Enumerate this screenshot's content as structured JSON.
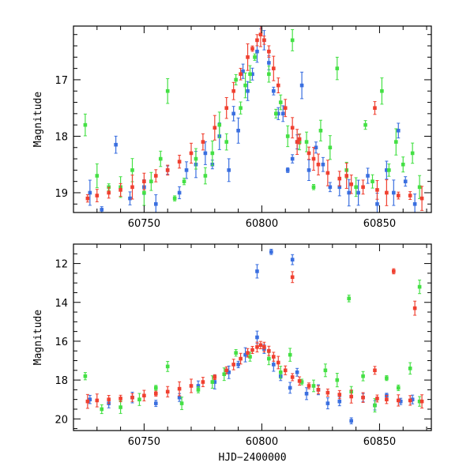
{
  "chart_data": [
    {
      "type": "scatter",
      "title": "",
      "xlabel": "",
      "ylabel": "Magnitude",
      "xlim": [
        60720,
        60872
      ],
      "ylim": [
        19.35,
        16.05
      ],
      "y_inverted": true,
      "x_ticks": [
        60750,
        60800,
        60850
      ],
      "y_ticks": [
        17,
        18,
        19
      ],
      "grid": false,
      "legend": "none",
      "series": [
        {
          "color": "#3a6fe0",
          "points": [
            [
              60727,
              19.0
            ],
            [
              60732,
              19.3
            ],
            [
              60738,
              18.15
            ],
            [
              60744,
              19.1
            ],
            [
              60750,
              18.9
            ],
            [
              60755,
              19.2
            ],
            [
              60760,
              18.6
            ],
            [
              60765,
              19.0
            ],
            [
              60768,
              18.6
            ],
            [
              60772,
              18.5
            ],
            [
              60776,
              18.3
            ],
            [
              60779,
              18.5
            ],
            [
              60782,
              18.0
            ],
            [
              60786,
              18.6
            ],
            [
              60788,
              17.6
            ],
            [
              60790,
              17.9
            ],
            [
              60792,
              16.85
            ],
            [
              60794,
              17.2
            ],
            [
              60796,
              16.9
            ],
            [
              60798,
              16.5
            ],
            [
              60799.6,
              15.95
            ],
            [
              60801,
              16.3
            ],
            [
              60803,
              16.7
            ],
            [
              60805,
              17.2
            ],
            [
              60807,
              17.6
            ],
            [
              60809,
              17.6
            ],
            [
              60811,
              18.6
            ],
            [
              60813,
              18.4
            ],
            [
              60815,
              18.1
            ],
            [
              60817,
              17.1
            ],
            [
              60820,
              18.6
            ],
            [
              60823,
              18.2
            ],
            [
              60826,
              18.5
            ],
            [
              60829,
              18.9
            ],
            [
              60833,
              18.9
            ],
            [
              60837,
              19.0
            ],
            [
              60841,
              19.0
            ],
            [
              60845,
              18.7
            ],
            [
              60849,
              19.2
            ],
            [
              60853,
              18.6
            ],
            [
              60856,
              19.0
            ],
            [
              60858,
              17.9
            ],
            [
              60861,
              18.8
            ],
            [
              60865,
              19.2
            ]
          ]
        },
        {
          "color": "#44e044",
          "points": [
            [
              60725,
              17.8
            ],
            [
              60730,
              18.7
            ],
            [
              60735,
              18.9
            ],
            [
              60740,
              18.9
            ],
            [
              60745,
              18.6
            ],
            [
              60750,
              19.0
            ],
            [
              60753,
              18.8
            ],
            [
              60757,
              18.4
            ],
            [
              60760,
              17.2
            ],
            [
              60763,
              19.1
            ],
            [
              60767,
              18.8
            ],
            [
              60772,
              18.4
            ],
            [
              60776,
              18.7
            ],
            [
              60779,
              18.3
            ],
            [
              60782,
              17.8
            ],
            [
              60785,
              18.1
            ],
            [
              60789,
              17.0
            ],
            [
              60791,
              17.5
            ],
            [
              60793,
              17.1
            ],
            [
              60795,
              16.9
            ],
            [
              60797,
              16.6
            ],
            [
              60803,
              16.9
            ],
            [
              60806,
              17.6
            ],
            [
              60808,
              17.4
            ],
            [
              60811,
              18.0
            ],
            [
              60813,
              16.3
            ],
            [
              60816,
              18.1
            ],
            [
              60819,
              18.1
            ],
            [
              60822,
              18.9
            ],
            [
              60825,
              17.9
            ],
            [
              60829,
              18.2
            ],
            [
              60832,
              16.8
            ],
            [
              60836,
              18.6
            ],
            [
              60840,
              18.9
            ],
            [
              60844,
              17.8
            ],
            [
              60847,
              18.8
            ],
            [
              60851,
              17.2
            ],
            [
              60854,
              18.6
            ],
            [
              60857,
              18.1
            ],
            [
              60860,
              18.5
            ],
            [
              60864,
              18.3
            ],
            [
              60867,
              18.9
            ]
          ]
        },
        {
          "color": "#f04030",
          "points": [
            [
              60726,
              19.1
            ],
            [
              60730,
              19.05
            ],
            [
              60735,
              19.0
            ],
            [
              60740,
              18.95
            ],
            [
              60745,
              18.9
            ],
            [
              60750,
              18.8
            ],
            [
              60755,
              18.7
            ],
            [
              60760,
              18.6
            ],
            [
              60765,
              18.45
            ],
            [
              60770,
              18.3
            ],
            [
              60775,
              18.1
            ],
            [
              60780,
              17.85
            ],
            [
              60785,
              17.5
            ],
            [
              60788,
              17.2
            ],
            [
              60791,
              16.9
            ],
            [
              60794,
              16.6
            ],
            [
              60796,
              16.45
            ],
            [
              60798,
              16.3
            ],
            [
              60799.5,
              16.2
            ],
            [
              60801,
              16.3
            ],
            [
              60803,
              16.5
            ],
            [
              60805,
              16.8
            ],
            [
              60807,
              17.1
            ],
            [
              60810,
              17.5
            ],
            [
              60813,
              17.85
            ],
            [
              60816,
              18.05
            ],
            [
              60820,
              18.3
            ],
            [
              60824,
              18.5
            ],
            [
              60828,
              18.65
            ],
            [
              60833,
              18.75
            ],
            [
              60838,
              18.85
            ],
            [
              60843,
              18.9
            ],
            [
              60848,
              17.5
            ],
            [
              60849,
              18.95
            ],
            [
              60853,
              19.0
            ],
            [
              60858,
              19.05
            ],
            [
              60863,
              19.05
            ],
            [
              60868,
              19.1
            ],
            [
              60815,
              18.1
            ],
            [
              60822,
              18.4
            ],
            [
              60836,
              18.7
            ]
          ]
        }
      ]
    },
    {
      "type": "scatter",
      "title": "",
      "xlabel": "HJD−2400000",
      "ylabel": "Magnitude",
      "xlim": [
        60720,
        60872
      ],
      "ylim": [
        20.6,
        11.0
      ],
      "y_inverted": true,
      "x_ticks": [
        60750,
        60800,
        60850
      ],
      "y_ticks": [
        12,
        14,
        16,
        18,
        20
      ],
      "grid": false,
      "legend": "none",
      "series": [
        {
          "color": "#3a6fe0",
          "points": [
            [
              60798,
              12.4
            ],
            [
              60804,
              11.4
            ],
            [
              60813,
              11.8
            ],
            [
              60727,
              19.0
            ],
            [
              60735,
              19.2
            ],
            [
              60745,
              18.9
            ],
            [
              60755,
              19.2
            ],
            [
              60765,
              18.9
            ],
            [
              60773,
              18.3
            ],
            [
              60780,
              18.1
            ],
            [
              60786,
              17.6
            ],
            [
              60790,
              17.2
            ],
            [
              60793,
              16.7
            ],
            [
              60798,
              15.8
            ],
            [
              60801,
              16.4
            ],
            [
              60805,
              17.2
            ],
            [
              60808,
              17.8
            ],
            [
              60812,
              18.4
            ],
            [
              60815,
              17.6
            ],
            [
              60819,
              18.7
            ],
            [
              60824,
              18.5
            ],
            [
              60828,
              19.2
            ],
            [
              60833,
              19.1
            ],
            [
              60838,
              20.1
            ],
            [
              60843,
              18.9
            ],
            [
              60848,
              19.3
            ],
            [
              60853,
              18.8
            ],
            [
              60859,
              19.1
            ],
            [
              60864,
              19.0
            ]
          ]
        },
        {
          "color": "#44e044",
          "points": [
            [
              60837,
              13.8
            ],
            [
              60867,
              13.2
            ],
            [
              60725,
              17.8
            ],
            [
              60732,
              19.5
            ],
            [
              60740,
              19.4
            ],
            [
              60748,
              19.0
            ],
            [
              60755,
              18.4
            ],
            [
              60760,
              17.3
            ],
            [
              60766,
              19.2
            ],
            [
              60773,
              18.5
            ],
            [
              60779,
              18.1
            ],
            [
              60784,
              17.7
            ],
            [
              60789,
              16.6
            ],
            [
              60795,
              16.8
            ],
            [
              60803,
              16.9
            ],
            [
              60808,
              17.6
            ],
            [
              60812,
              16.7
            ],
            [
              60817,
              18.1
            ],
            [
              60822,
              18.3
            ],
            [
              60827,
              17.5
            ],
            [
              60832,
              18.0
            ],
            [
              60838,
              18.6
            ],
            [
              60843,
              17.8
            ],
            [
              60848,
              19.3
            ],
            [
              60853,
              17.9
            ],
            [
              60858,
              18.4
            ],
            [
              60863,
              17.4
            ],
            [
              60867,
              19.1
            ]
          ]
        },
        {
          "color": "#f04030",
          "points": [
            [
              60813,
              12.7
            ],
            [
              60856,
              12.4
            ],
            [
              60865,
              14.3
            ],
            [
              60726,
              19.1
            ],
            [
              60730,
              19.05
            ],
            [
              60735,
              19.0
            ],
            [
              60740,
              18.95
            ],
            [
              60745,
              18.9
            ],
            [
              60750,
              18.8
            ],
            [
              60755,
              18.7
            ],
            [
              60760,
              18.6
            ],
            [
              60765,
              18.45
            ],
            [
              60770,
              18.3
            ],
            [
              60775,
              18.1
            ],
            [
              60780,
              17.85
            ],
            [
              60785,
              17.5
            ],
            [
              60788,
              17.2
            ],
            [
              60791,
              16.9
            ],
            [
              60794,
              16.6
            ],
            [
              60796,
              16.45
            ],
            [
              60798,
              16.3
            ],
            [
              60799.5,
              16.2
            ],
            [
              60801,
              16.3
            ],
            [
              60803,
              16.5
            ],
            [
              60805,
              16.8
            ],
            [
              60807,
              17.1
            ],
            [
              60810,
              17.5
            ],
            [
              60813,
              17.85
            ],
            [
              60816,
              18.05
            ],
            [
              60820,
              18.3
            ],
            [
              60824,
              18.5
            ],
            [
              60828,
              18.65
            ],
            [
              60833,
              18.75
            ],
            [
              60838,
              18.85
            ],
            [
              60843,
              18.9
            ],
            [
              60848,
              17.5
            ],
            [
              60849,
              18.95
            ],
            [
              60853,
              19.0
            ],
            [
              60858,
              19.05
            ],
            [
              60863,
              19.05
            ],
            [
              60868,
              19.1
            ]
          ]
        }
      ]
    }
  ]
}
